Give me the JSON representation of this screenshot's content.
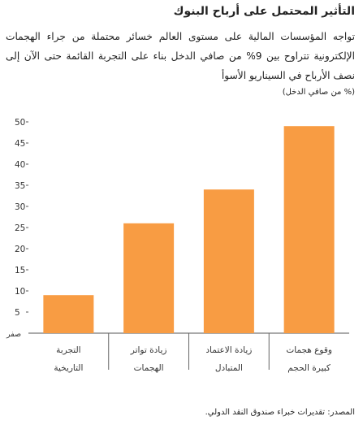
{
  "chart_data": {
    "type": "bar",
    "title": "التأثير المحتمل على أرباح البنوك",
    "subtitle": "تواجه المؤسسات المالية على مستوى العالم خسائر محتملة من جراء الهجمات الإلكترونية تتراوح بين 9% من صافي الدخل بناء على التجربة القائمة حتى الآن إلى نصف الأرباح في السيناريو الأسوأ",
    "ylabel": "(% من صافي الدخل)",
    "zero_label": "صفر",
    "yticks": [
      5,
      10,
      15,
      20,
      25,
      30,
      35,
      40,
      45,
      50
    ],
    "ylim": [
      0,
      50
    ],
    "categories": [
      [
        "التجربة",
        "التاريخية"
      ],
      [
        "زيادة تواتر",
        "الهجمات"
      ],
      [
        "زيادة الاعتماد",
        "المتبادل"
      ],
      [
        "وقوع هجمات",
        "كبيرة الحجم"
      ]
    ],
    "values": [
      9,
      26,
      34,
      49
    ],
    "bar_color": "#F89C43",
    "grid": false,
    "source": "المصدر: تقديرات خبراء صندوق النقد الدولي."
  }
}
